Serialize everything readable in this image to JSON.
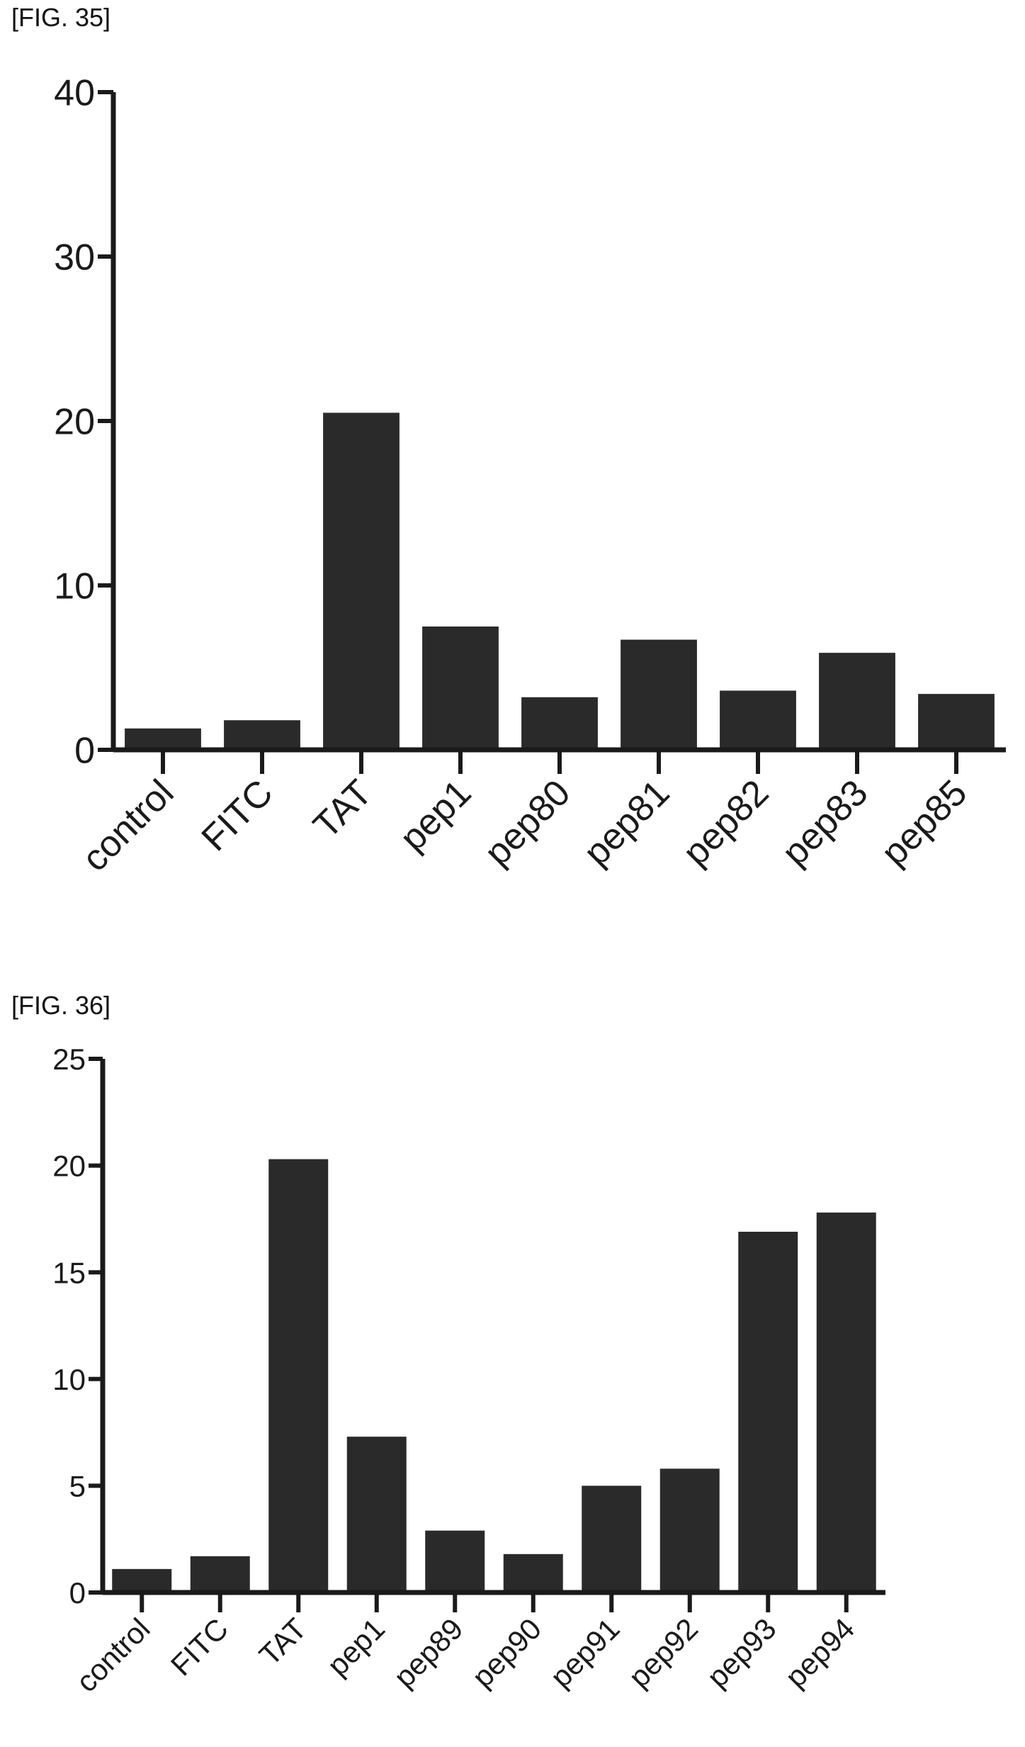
{
  "figures": [
    {
      "label": "[FIG. 35]"
    },
    {
      "label": "[FIG. 36]"
    }
  ],
  "chart_data": [
    {
      "type": "bar",
      "title": "",
      "xlabel": "",
      "ylabel": "",
      "categories": [
        "control",
        "FITC",
        "TAT",
        "pep1",
        "pep80",
        "pep81",
        "pep82",
        "pep83",
        "pep85"
      ],
      "values": [
        1.3,
        1.8,
        20.5,
        7.5,
        3.2,
        6.7,
        3.6,
        5.9,
        3.4
      ],
      "ylim": [
        0,
        40
      ],
      "yticks": [
        0,
        10,
        20,
        30,
        40
      ],
      "grid": false,
      "bar_color": "#2a2a2a"
    },
    {
      "type": "bar",
      "title": "",
      "xlabel": "",
      "ylabel": "",
      "categories": [
        "control",
        "FITC",
        "TAT",
        "pep1",
        "pep89",
        "pep90",
        "pep91",
        "pep92",
        "pep93",
        "pep94"
      ],
      "values": [
        1.1,
        1.7,
        20.3,
        7.3,
        2.9,
        1.8,
        5.0,
        5.8,
        16.9,
        17.8
      ],
      "ylim": [
        0,
        25
      ],
      "yticks": [
        0,
        5,
        10,
        15,
        20,
        25
      ],
      "grid": false,
      "bar_color": "#2a2a2a"
    }
  ]
}
